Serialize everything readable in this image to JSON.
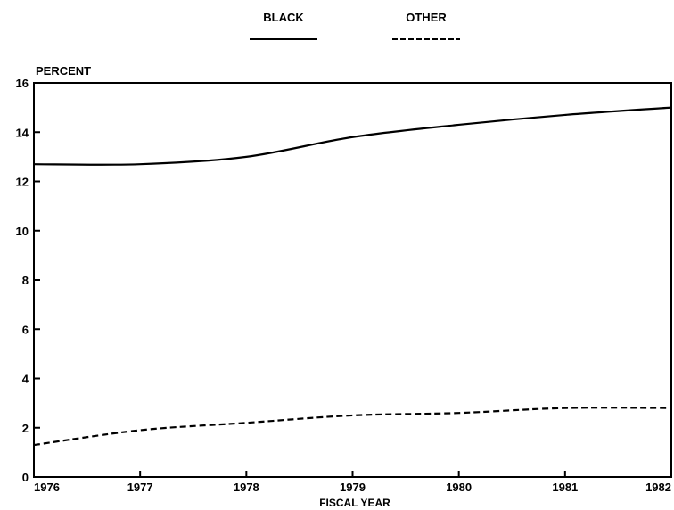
{
  "chart_data": {
    "type": "line",
    "title": "",
    "xlabel": "FISCAL YEAR",
    "ylabel": "PERCENT",
    "x": [
      "1976",
      "1977",
      "1978",
      "1979",
      "1980",
      "1981",
      "1982"
    ],
    "ylim": [
      0,
      16
    ],
    "yticks": [
      "0",
      "2",
      "4",
      "6",
      "8",
      "10",
      "12",
      "14",
      "16"
    ],
    "grid": false,
    "legend_position": "top-center",
    "series": [
      {
        "name": "BLACK",
        "style": "solid",
        "color": "#000000",
        "values": [
          12.7,
          12.7,
          13.0,
          13.8,
          14.3,
          14.7,
          15.0
        ]
      },
      {
        "name": "OTHER",
        "style": "dashed",
        "color": "#000000",
        "values": [
          1.3,
          1.9,
          2.2,
          2.5,
          2.6,
          2.8,
          2.8
        ]
      }
    ]
  }
}
